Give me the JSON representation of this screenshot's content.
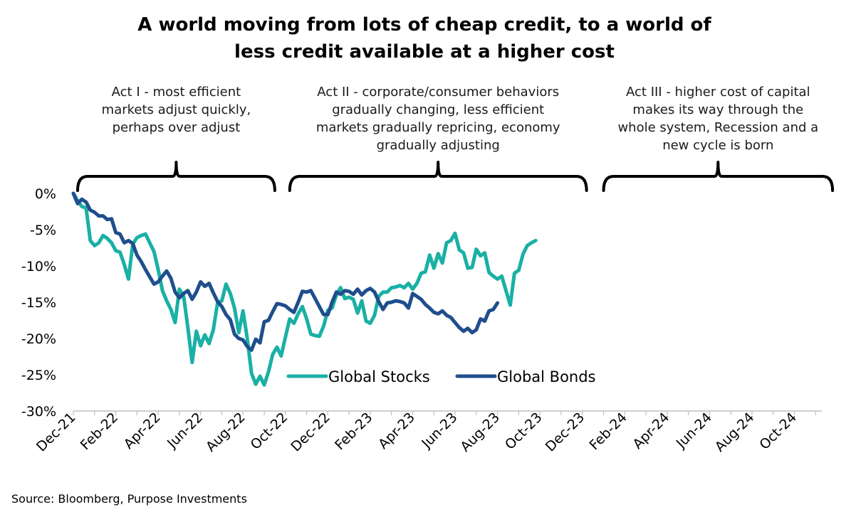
{
  "chart_data": {
    "type": "line",
    "title_lines": [
      "A world moving from lots of cheap credit, to a world of",
      "less credit available at a higher cost"
    ],
    "source": "Source: Bloomberg, Purpose Investments",
    "ylim": [
      -30,
      0
    ],
    "yticks": [
      0,
      -5,
      -10,
      -15,
      -20,
      -25,
      -30
    ],
    "ytick_labels": [
      "0%",
      "-5%",
      "-10%",
      "-15%",
      "-20%",
      "-25%",
      "-30%"
    ],
    "x_start": "2021-12",
    "x_end": "2024-12",
    "x_tick_labels": [
      "Dec-21",
      "Feb-22",
      "Apr-22",
      "Jun-22",
      "Aug-22",
      "Oct-22",
      "Dec-22",
      "Feb-23",
      "Apr-23",
      "Jun-23",
      "Aug-23",
      "Oct-23",
      "Dec-23",
      "Feb-24",
      "Apr-24",
      "Jun-24",
      "Aug-24",
      "Oct-24"
    ],
    "x_tick_months": [
      0,
      2,
      4,
      6,
      8,
      10,
      12,
      14,
      16,
      18,
      20,
      22,
      24,
      26,
      28,
      30,
      32,
      34
    ],
    "legend_position": "bottom-center",
    "acts": [
      {
        "lines": [
          "Act I - most efficient",
          "markets adjust quickly,",
          "perhaps over adjust"
        ],
        "span_months": [
          0,
          9.7
        ]
      },
      {
        "lines": [
          "Act II - corporate/consumer behaviors",
          "gradually changing, less efficient",
          "markets gradually repricing, economy",
          "gradually adjusting"
        ],
        "span_months": [
          10.0,
          24.4
        ]
      },
      {
        "lines": [
          "Act III - higher cost of capital",
          "makes its way through the",
          "whole system, Recession and a",
          "new cycle is born"
        ],
        "span_months": [
          24.8,
          36.0
        ]
      }
    ],
    "series": [
      {
        "name": "Global Stocks",
        "color": "#1ab0a5",
        "points": [
          [
            0,
            0
          ],
          [
            0.2,
            -1.0
          ],
          [
            0.4,
            -1.8
          ],
          [
            0.6,
            -2.0
          ],
          [
            0.8,
            -6.5
          ],
          [
            1.0,
            -7.2
          ],
          [
            1.2,
            -6.8
          ],
          [
            1.4,
            -5.8
          ],
          [
            1.6,
            -6.2
          ],
          [
            1.8,
            -6.8
          ],
          [
            2.0,
            -7.9
          ],
          [
            2.2,
            -8.1
          ],
          [
            2.4,
            -9.8
          ],
          [
            2.6,
            -11.8
          ],
          [
            2.8,
            -7.0
          ],
          [
            3.0,
            -6.1
          ],
          [
            3.2,
            -5.8
          ],
          [
            3.4,
            -5.6
          ],
          [
            3.6,
            -6.8
          ],
          [
            3.8,
            -8.0
          ],
          [
            4.0,
            -10.5
          ],
          [
            4.2,
            -13.4
          ],
          [
            4.4,
            -14.8
          ],
          [
            4.6,
            -16.0
          ],
          [
            4.8,
            -17.8
          ],
          [
            5.0,
            -13.2
          ],
          [
            5.2,
            -14.2
          ],
          [
            5.4,
            -18.5
          ],
          [
            5.6,
            -23.3
          ],
          [
            5.8,
            -19.0
          ],
          [
            6.0,
            -21.0
          ],
          [
            6.2,
            -19.5
          ],
          [
            6.4,
            -20.7
          ],
          [
            6.6,
            -18.8
          ],
          [
            6.8,
            -15.1
          ],
          [
            7.0,
            -14.8
          ],
          [
            7.2,
            -12.5
          ],
          [
            7.4,
            -13.8
          ],
          [
            7.6,
            -15.8
          ],
          [
            7.8,
            -19.2
          ],
          [
            8.0,
            -16.2
          ],
          [
            8.2,
            -20.0
          ],
          [
            8.4,
            -24.8
          ],
          [
            8.6,
            -26.3
          ],
          [
            8.8,
            -25.2
          ],
          [
            9.0,
            -26.4
          ],
          [
            9.2,
            -24.6
          ],
          [
            9.4,
            -22.2
          ],
          [
            9.6,
            -21.2
          ],
          [
            9.8,
            -22.4
          ],
          [
            10.0,
            -19.8
          ],
          [
            10.2,
            -17.3
          ],
          [
            10.4,
            -17.9
          ],
          [
            10.6,
            -16.6
          ],
          [
            10.8,
            -15.6
          ],
          [
            11.0,
            -17.3
          ],
          [
            11.2,
            -19.4
          ],
          [
            11.4,
            -19.6
          ],
          [
            11.6,
            -19.7
          ],
          [
            11.8,
            -18.3
          ],
          [
            12.0,
            -16.1
          ],
          [
            12.2,
            -15.8
          ],
          [
            12.4,
            -14.0
          ],
          [
            12.6,
            -13.0
          ],
          [
            12.8,
            -14.5
          ],
          [
            13.0,
            -14.3
          ],
          [
            13.2,
            -14.6
          ],
          [
            13.4,
            -16.5
          ],
          [
            13.6,
            -14.8
          ],
          [
            13.8,
            -17.6
          ],
          [
            14.0,
            -17.9
          ],
          [
            14.2,
            -16.8
          ],
          [
            14.4,
            -14.2
          ],
          [
            14.6,
            -13.6
          ],
          [
            14.8,
            -13.6
          ],
          [
            15.0,
            -13.0
          ],
          [
            15.2,
            -12.9
          ],
          [
            15.4,
            -12.7
          ],
          [
            15.6,
            -13.0
          ],
          [
            15.8,
            -12.4
          ],
          [
            16.0,
            -13.2
          ],
          [
            16.2,
            -12.4
          ],
          [
            16.4,
            -11.0
          ],
          [
            16.6,
            -10.8
          ],
          [
            16.8,
            -8.5
          ],
          [
            17.0,
            -10.3
          ],
          [
            17.2,
            -8.3
          ],
          [
            17.4,
            -9.6
          ],
          [
            17.6,
            -6.8
          ],
          [
            17.8,
            -6.5
          ],
          [
            18.0,
            -5.5
          ],
          [
            18.2,
            -7.8
          ],
          [
            18.4,
            -8.2
          ],
          [
            18.6,
            -10.3
          ],
          [
            18.8,
            -10.2
          ],
          [
            19.0,
            -7.7
          ],
          [
            19.2,
            -8.6
          ],
          [
            19.4,
            -8.2
          ],
          [
            19.6,
            -10.9
          ],
          [
            19.8,
            -11.4
          ],
          [
            20.0,
            -11.8
          ],
          [
            20.2,
            -11.4
          ],
          [
            20.4,
            -13.4
          ],
          [
            20.6,
            -15.4
          ],
          [
            20.8,
            -11.0
          ],
          [
            21.0,
            -10.6
          ],
          [
            21.2,
            -8.4
          ],
          [
            21.4,
            -7.2
          ],
          [
            21.6,
            -6.8
          ],
          [
            21.8,
            -6.5
          ]
        ]
      },
      {
        "name": "Global Bonds",
        "color": "#1f4e8c",
        "points": [
          [
            0,
            0
          ],
          [
            0.2,
            -1.4
          ],
          [
            0.4,
            -0.8
          ],
          [
            0.6,
            -1.2
          ],
          [
            0.8,
            -2.3
          ],
          [
            1.0,
            -2.6
          ],
          [
            1.2,
            -3.1
          ],
          [
            1.4,
            -3.1
          ],
          [
            1.6,
            -3.6
          ],
          [
            1.8,
            -3.5
          ],
          [
            2.0,
            -5.4
          ],
          [
            2.2,
            -5.6
          ],
          [
            2.4,
            -6.8
          ],
          [
            2.6,
            -6.5
          ],
          [
            2.8,
            -6.9
          ],
          [
            3.0,
            -8.5
          ],
          [
            3.2,
            -9.4
          ],
          [
            3.4,
            -10.5
          ],
          [
            3.6,
            -11.5
          ],
          [
            3.8,
            -12.5
          ],
          [
            4.0,
            -12.2
          ],
          [
            4.2,
            -11.4
          ],
          [
            4.4,
            -10.7
          ],
          [
            4.6,
            -11.7
          ],
          [
            4.8,
            -13.6
          ],
          [
            5.0,
            -14.4
          ],
          [
            5.2,
            -13.8
          ],
          [
            5.4,
            -13.4
          ],
          [
            5.6,
            -14.6
          ],
          [
            5.8,
            -13.6
          ],
          [
            6.0,
            -12.2
          ],
          [
            6.2,
            -12.8
          ],
          [
            6.4,
            -12.4
          ],
          [
            6.6,
            -13.7
          ],
          [
            6.8,
            -14.9
          ],
          [
            7.0,
            -15.6
          ],
          [
            7.2,
            -16.7
          ],
          [
            7.4,
            -17.4
          ],
          [
            7.6,
            -19.4
          ],
          [
            7.8,
            -20.0
          ],
          [
            8.0,
            -20.2
          ],
          [
            8.2,
            -21.1
          ],
          [
            8.4,
            -21.6
          ],
          [
            8.6,
            -20.1
          ],
          [
            8.8,
            -20.6
          ],
          [
            9.0,
            -17.7
          ],
          [
            9.2,
            -17.5
          ],
          [
            9.4,
            -16.3
          ],
          [
            9.6,
            -15.2
          ],
          [
            9.8,
            -15.3
          ],
          [
            10.0,
            -15.5
          ],
          [
            10.2,
            -16.0
          ],
          [
            10.4,
            -16.4
          ],
          [
            10.6,
            -15.0
          ],
          [
            10.8,
            -13.5
          ],
          [
            11.0,
            -13.6
          ],
          [
            11.2,
            -13.4
          ],
          [
            11.4,
            -14.5
          ],
          [
            11.6,
            -15.6
          ],
          [
            11.8,
            -16.7
          ],
          [
            12.0,
            -16.7
          ],
          [
            12.2,
            -15.0
          ],
          [
            12.4,
            -13.6
          ],
          [
            12.6,
            -13.9
          ],
          [
            12.8,
            -13.4
          ],
          [
            13.0,
            -13.5
          ],
          [
            13.2,
            -13.9
          ],
          [
            13.4,
            -13.2
          ],
          [
            13.6,
            -14.0
          ],
          [
            13.8,
            -13.4
          ],
          [
            14.0,
            -13.1
          ],
          [
            14.2,
            -13.6
          ],
          [
            14.4,
            -14.9
          ],
          [
            14.6,
            -16.0
          ],
          [
            14.8,
            -15.1
          ],
          [
            15.0,
            -15.0
          ],
          [
            15.2,
            -14.8
          ],
          [
            15.4,
            -14.9
          ],
          [
            15.6,
            -15.1
          ],
          [
            15.8,
            -15.8
          ],
          [
            16.0,
            -13.8
          ],
          [
            16.2,
            -14.2
          ],
          [
            16.4,
            -14.6
          ],
          [
            16.6,
            -15.3
          ],
          [
            16.8,
            -15.8
          ],
          [
            17.0,
            -16.4
          ],
          [
            17.2,
            -16.6
          ],
          [
            17.4,
            -16.2
          ],
          [
            17.6,
            -16.8
          ],
          [
            17.8,
            -17.1
          ],
          [
            18.0,
            -17.8
          ],
          [
            18.2,
            -18.5
          ],
          [
            18.4,
            -19.0
          ],
          [
            18.6,
            -18.6
          ],
          [
            18.8,
            -19.2
          ],
          [
            19.0,
            -18.8
          ],
          [
            19.2,
            -17.3
          ],
          [
            19.4,
            -17.6
          ],
          [
            19.6,
            -16.2
          ],
          [
            19.8,
            -16.0
          ],
          [
            20.0,
            -15.1
          ]
        ]
      }
    ]
  }
}
